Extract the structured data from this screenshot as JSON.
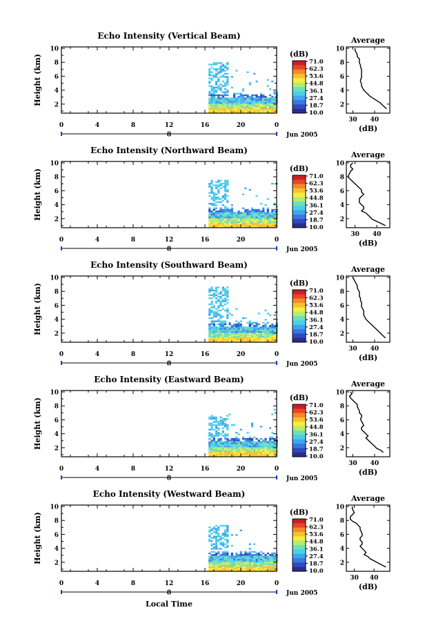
{
  "figure": {
    "xlabel": "Local Time",
    "date_label": "Jun 2005",
    "colorbar_unit": "(dB)",
    "colorbar_ticks": [
      "71.0",
      "62.3",
      "53.6",
      "44.8",
      "36.1",
      "27.4",
      "18.7",
      "10.0"
    ],
    "colorbar_colors": [
      "#2b2c8e",
      "#2f4bc0",
      "#3a78e0",
      "#3fa6ee",
      "#4ccfe8",
      "#6ee0b8",
      "#b6ec6e",
      "#f4ee3c",
      "#f8c030",
      "#f48a2a",
      "#e8452a",
      "#c81e28"
    ],
    "avg_title": "Average",
    "avg_xlabel": "(dB)"
  },
  "chart_data": [
    {
      "type": "heatmap",
      "title": "Echo Intensity (Vertical Beam)",
      "ylabel": "Height (km)",
      "x_ticks": [
        "0",
        "4",
        "8",
        "12",
        "16",
        "20",
        "0"
      ],
      "day_marker": "8",
      "y_ticks": [
        "10",
        "8",
        "6",
        "4",
        "2"
      ],
      "xlim": [
        0,
        24
      ],
      "ylim": [
        0.7,
        10.2
      ],
      "data_start_hour": 16.4,
      "upper_echo_top_km": 8.0,
      "average_profile": {
        "x_ticks": [
          "30",
          "40"
        ],
        "xlim": [
          27,
          47
        ],
        "y_ticks": [
          "10",
          "8",
          "6",
          "4",
          "2"
        ],
        "x": [
          31,
          31,
          31.5,
          32,
          32,
          33,
          33,
          33,
          33.5,
          33.5,
          34,
          34,
          34,
          34,
          34,
          33.5,
          33.5,
          34,
          34,
          34.5,
          35,
          36,
          37,
          38,
          39.5,
          41,
          42.5,
          43.5,
          44.5,
          45.5
        ],
        "y": [
          10,
          9.7,
          9.4,
          9.1,
          8.8,
          8.5,
          8.2,
          7.9,
          7.6,
          7.3,
          7.0,
          6.7,
          6.4,
          6.1,
          5.8,
          5.5,
          5.2,
          4.9,
          4.6,
          4.3,
          4.0,
          3.7,
          3.4,
          3.1,
          2.8,
          2.5,
          2.2,
          1.9,
          1.6,
          1.3
        ]
      }
    },
    {
      "type": "heatmap",
      "title": "Echo Intensity (Northward Beam)",
      "ylabel": "Height (km)",
      "x_ticks": [
        "0",
        "4",
        "8",
        "12",
        "16",
        "20",
        "0"
      ],
      "day_marker": "8",
      "y_ticks": [
        "10",
        "8",
        "6",
        "4",
        "2"
      ],
      "xlim": [
        0,
        24
      ],
      "ylim": [
        0.7,
        10.2
      ],
      "data_start_hour": 16.4,
      "upper_echo_top_km": 7.5,
      "average_profile": {
        "x_ticks": [
          "30",
          "40"
        ],
        "xlim": [
          26,
          46
        ],
        "y_ticks": [
          "10",
          "8",
          "6",
          "4",
          "2"
        ],
        "x": [
          29,
          28,
          28,
          29,
          28,
          27.5,
          27,
          27,
          28,
          29,
          30,
          31,
          32,
          33,
          33,
          34,
          33,
          32,
          32,
          32,
          33,
          34,
          34,
          33,
          35,
          36,
          37,
          38,
          40,
          42,
          44
        ],
        "y": [
          10,
          9.7,
          9.4,
          9.1,
          8.8,
          8.5,
          8.2,
          7.9,
          7.6,
          7.3,
          7.0,
          6.7,
          6.4,
          6.1,
          5.8,
          5.5,
          5.2,
          4.9,
          4.6,
          4.3,
          4.0,
          3.7,
          3.4,
          3.1,
          2.8,
          2.5,
          2.2,
          1.9,
          1.6,
          1.3,
          1.0
        ]
      }
    },
    {
      "type": "heatmap",
      "title": "Echo Intensity (Southward Beam)",
      "ylabel": "Height (km)",
      "x_ticks": [
        "0",
        "4",
        "8",
        "12",
        "16",
        "20",
        "0"
      ],
      "day_marker": "8",
      "y_ticks": [
        "10",
        "8",
        "6",
        "4",
        "2"
      ],
      "xlim": [
        0,
        24
      ],
      "ylim": [
        0.7,
        10.2
      ],
      "data_start_hour": 16.4,
      "upper_echo_top_km": 8.6,
      "average_profile": {
        "x_ticks": [
          "30",
          "40"
        ],
        "xlim": [
          27,
          47
        ],
        "y_ticks": [
          "10",
          "8",
          "6",
          "4",
          "2"
        ],
        "x": [
          30,
          30.5,
          31,
          31.5,
          32,
          32,
          32.5,
          33,
          33,
          33,
          33.5,
          33.5,
          34,
          34,
          34,
          34.5,
          35,
          35,
          35,
          35.5,
          36,
          37,
          38,
          39,
          40,
          41,
          42,
          43,
          44,
          45
        ],
        "y": [
          10,
          9.7,
          9.4,
          9.1,
          8.8,
          8.5,
          8.2,
          7.9,
          7.6,
          7.3,
          7.0,
          6.7,
          6.4,
          6.1,
          5.8,
          5.5,
          5.2,
          4.9,
          4.6,
          4.3,
          4.0,
          3.7,
          3.4,
          3.1,
          2.8,
          2.5,
          2.2,
          1.9,
          1.6,
          1.3
        ]
      }
    },
    {
      "type": "heatmap",
      "title": "Echo Intensity (Eastward Beam)",
      "ylabel": "Height (km)",
      "x_ticks": [
        "0",
        "4",
        "8",
        "12",
        "16",
        "20",
        "0"
      ],
      "day_marker": "8",
      "y_ticks": [
        "10",
        "8",
        "6",
        "4",
        "2"
      ],
      "xlim": [
        0,
        24
      ],
      "ylim": [
        0.7,
        10.2
      ],
      "data_start_hour": 16.4,
      "upper_echo_top_km": 6.6,
      "average_profile": {
        "x_ticks": [
          "30",
          "40"
        ],
        "xlim": [
          27,
          47
        ],
        "y_ticks": [
          "10",
          "8",
          "6",
          "4",
          "2"
        ],
        "x": [
          29,
          29.5,
          28.5,
          29,
          30,
          31,
          32,
          32,
          32.5,
          33,
          33,
          34,
          34,
          33.5,
          34,
          34.5,
          35,
          34,
          34,
          35,
          36,
          37,
          36,
          37,
          38,
          39,
          40,
          41,
          43,
          44
        ],
        "y": [
          10,
          9.7,
          9.4,
          9.1,
          8.8,
          8.5,
          8.2,
          7.9,
          7.6,
          7.3,
          7.0,
          6.7,
          6.4,
          6.1,
          5.8,
          5.5,
          5.2,
          4.9,
          4.6,
          4.3,
          4.0,
          3.7,
          3.4,
          3.1,
          2.8,
          2.5,
          2.2,
          1.9,
          1.6,
          1.3
        ]
      }
    },
    {
      "type": "heatmap",
      "title": "Echo Intensity (Westward Beam)",
      "ylabel": "Height (km)",
      "x_ticks": [
        "0",
        "4",
        "8",
        "12",
        "16",
        "20",
        "0"
      ],
      "day_marker": "8",
      "y_ticks": [
        "10",
        "8",
        "6",
        "4",
        "2"
      ],
      "xlim": [
        0,
        24
      ],
      "ylim": [
        0.7,
        10.2
      ],
      "data_start_hour": 16.4,
      "upper_echo_top_km": 7.2,
      "average_profile": {
        "x_ticks": [
          "30",
          "40"
        ],
        "xlim": [
          26,
          48
        ],
        "y_ticks": [
          "10",
          "8",
          "6",
          "4",
          "2"
        ],
        "x": [
          29,
          29,
          29.5,
          30,
          29,
          28,
          28,
          29,
          31,
          32,
          33,
          33,
          33.5,
          34,
          34,
          33,
          33,
          34,
          34,
          33,
          34,
          35,
          36,
          35,
          37,
          38,
          40,
          42,
          44,
          46
        ],
        "y": [
          10,
          9.7,
          9.4,
          9.1,
          8.8,
          8.5,
          8.2,
          7.9,
          7.6,
          7.3,
          7.0,
          6.7,
          6.4,
          6.1,
          5.8,
          5.5,
          5.2,
          4.9,
          4.6,
          4.3,
          4.0,
          3.7,
          3.4,
          3.1,
          2.8,
          2.5,
          2.2,
          1.9,
          1.6,
          1.3
        ]
      }
    }
  ]
}
